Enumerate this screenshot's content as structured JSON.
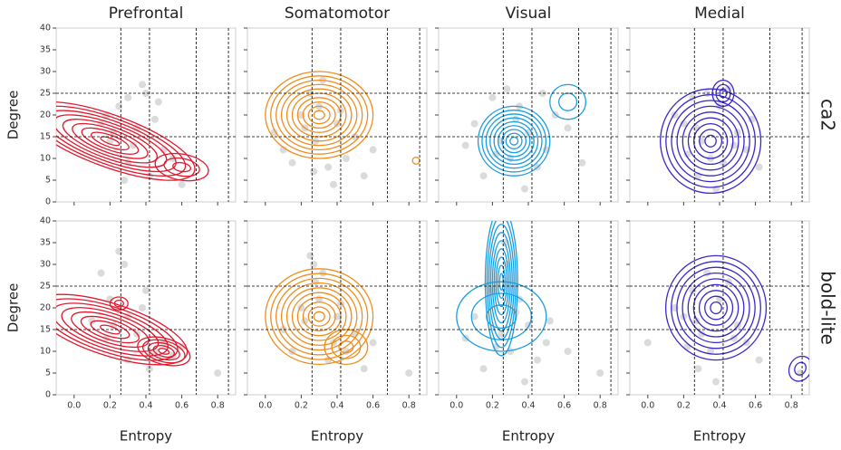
{
  "chart_data": {
    "type": "kde-grid",
    "column_titles": [
      "Prefrontal",
      "Somatomotor",
      "Visual",
      "Medial"
    ],
    "row_titles": [
      "ca2",
      "bold-lite"
    ],
    "x_label": "Entropy",
    "y_label": "Degree",
    "xlim": [
      -0.1,
      0.9
    ],
    "xticks": [
      {
        "value": 0,
        "label": "0.0"
      },
      0.2,
      0.4,
      0.6,
      0.8
    ],
    "ylim": [
      0,
      40
    ],
    "yticks": [
      0,
      5,
      10,
      15,
      20,
      25,
      30,
      35,
      40
    ],
    "vlines": [
      0.26,
      0.42,
      0.68,
      0.86
    ],
    "hlines": [
      15,
      25
    ],
    "panels": [
      {
        "type": "kde",
        "color": "#e3182d",
        "x": [
          0.15,
          0.2,
          0.25,
          0.3,
          0.35,
          0.4,
          0.45,
          0.5,
          0.3,
          0.22,
          0.38,
          0.42,
          0.28,
          0.18,
          0.55,
          0.33,
          0.47,
          0.6
        ],
        "y": [
          18,
          14,
          22,
          24,
          17,
          25,
          19,
          12,
          9,
          16,
          27,
          6,
          5,
          20,
          10,
          13,
          23,
          4
        ],
        "kde": [
          {
            "x": 0.2,
            "y": 14,
            "rx": 0.5,
            "ry": 6,
            "angle": 20,
            "levels": 9
          },
          {
            "x": 0.6,
            "y": 8,
            "rx": 0.15,
            "ry": 3,
            "angle": 10,
            "levels": 3
          }
        ]
      },
      {
        "type": "kde",
        "color": "#ef8e1f",
        "x": [
          0.1,
          0.2,
          0.25,
          0.3,
          0.35,
          0.4,
          0.5,
          0.55,
          0.15,
          0.28,
          0.45,
          0.32,
          0.22,
          0.38,
          0.6,
          0.05,
          0.42,
          0.27
        ],
        "y": [
          12,
          20,
          25,
          22,
          8,
          18,
          15,
          6,
          9,
          14,
          10,
          28,
          17,
          4,
          12,
          16,
          21,
          7
        ],
        "kde": [
          {
            "x": 0.3,
            "y": 20,
            "rx": 0.3,
            "ry": 10,
            "angle": 0,
            "levels": 10
          },
          {
            "x": 0.84,
            "y": 9.5,
            "rx": 0.02,
            "ry": 0.8,
            "angle": 0,
            "levels": 1
          }
        ]
      },
      {
        "type": "kde",
        "color": "#1b9ee0",
        "x": [
          0.1,
          0.2,
          0.25,
          0.3,
          0.35,
          0.4,
          0.5,
          0.55,
          0.15,
          0.28,
          0.45,
          0.62,
          0.22,
          0.38,
          0.05,
          0.48,
          0.33,
          0.7
        ],
        "y": [
          18,
          24,
          14,
          10,
          22,
          16,
          12,
          20,
          6,
          26,
          8,
          17,
          11,
          3,
          13,
          25,
          19,
          9
        ],
        "kde": [
          {
            "x": 0.32,
            "y": 14,
            "rx": 0.2,
            "ry": 8,
            "angle": 0,
            "levels": 9
          },
          {
            "x": 0.62,
            "y": 23,
            "rx": 0.1,
            "ry": 4,
            "angle": 0,
            "levels": 2
          }
        ]
      },
      {
        "type": "kde",
        "color": "#3b28c8",
        "x": [
          0.2,
          0.25,
          0.3,
          0.35,
          0.4,
          0.5,
          0.55,
          0.15,
          0.28,
          0.45,
          0.62,
          0.22,
          0.38,
          0.48,
          0.33,
          0.58,
          0.42,
          0.27
        ],
        "y": [
          18,
          24,
          14,
          10,
          22,
          16,
          12,
          20,
          6,
          26,
          8,
          11,
          3,
          13,
          25,
          19,
          9,
          17
        ],
        "kde": [
          {
            "x": 0.35,
            "y": 14,
            "rx": 0.28,
            "ry": 12,
            "angle": 0,
            "levels": 9
          },
          {
            "x": 0.42,
            "y": 25,
            "rx": 0.06,
            "ry": 3,
            "angle": 0,
            "levels": 3
          }
        ]
      },
      {
        "type": "kde",
        "color": "#e3182d",
        "x": [
          0.15,
          0.2,
          0.25,
          0.3,
          0.35,
          0.4,
          0.45,
          0.5,
          0.3,
          0.22,
          0.38,
          0.42,
          0.28,
          0.18,
          0.55,
          0.8,
          0.1,
          0.6
        ],
        "y": [
          28,
          22,
          33,
          18,
          14,
          24,
          10,
          12,
          8,
          16,
          20,
          6,
          30,
          13,
          9,
          5,
          17,
          11
        ],
        "kde": [
          {
            "x": 0.2,
            "y": 15,
            "rx": 0.45,
            "ry": 6,
            "angle": 18,
            "levels": 8
          },
          {
            "x": 0.5,
            "y": 10,
            "rx": 0.15,
            "ry": 3,
            "angle": 15,
            "levels": 5
          },
          {
            "x": 0.25,
            "y": 21,
            "rx": 0.05,
            "ry": 1.5,
            "angle": 0,
            "levels": 2
          }
        ]
      },
      {
        "type": "kde",
        "color": "#ef8e1f",
        "x": [
          0.1,
          0.2,
          0.25,
          0.3,
          0.35,
          0.4,
          0.5,
          0.55,
          0.15,
          0.28,
          0.45,
          0.32,
          0.22,
          0.38,
          0.6,
          0.8,
          0.42,
          0.27
        ],
        "y": [
          15,
          20,
          32,
          22,
          8,
          18,
          14,
          6,
          10,
          26,
          10,
          28,
          17,
          12,
          12,
          5,
          21,
          30
        ],
        "kde": [
          {
            "x": 0.3,
            "y": 18,
            "rx": 0.3,
            "ry": 11,
            "angle": 0,
            "levels": 10
          },
          {
            "x": 0.45,
            "y": 11,
            "rx": 0.12,
            "ry": 4,
            "angle": 0,
            "levels": 3
          }
        ]
      },
      {
        "type": "kde",
        "color": "#1b9ee0",
        "x": [
          0.1,
          0.2,
          0.25,
          0.3,
          0.35,
          0.4,
          0.5,
          0.05,
          0.15,
          0.28,
          0.45,
          0.62,
          0.22,
          0.38,
          0.52,
          0.8,
          0.33,
          0.27
        ],
        "y": [
          18,
          24,
          14,
          10,
          22,
          16,
          12,
          13,
          6,
          30,
          8,
          10,
          11,
          3,
          17,
          5,
          19,
          35
        ],
        "kde": [
          {
            "x": 0.25,
            "y": 26,
            "rx": 0.09,
            "ry": 17,
            "angle": 0,
            "levels": 9
          },
          {
            "x": 0.25,
            "y": 18,
            "rx": 0.25,
            "ry": 8,
            "angle": 0,
            "levels": 3
          }
        ]
      },
      {
        "type": "kde",
        "color": "#3b28c8",
        "x": [
          0.2,
          0.25,
          0.3,
          0.35,
          0.4,
          0.5,
          0.55,
          0.15,
          0.28,
          0.45,
          0.62,
          0.22,
          0.38,
          0.48,
          0.33,
          0.85,
          0.0,
          0.27
        ],
        "y": [
          18,
          24,
          14,
          10,
          22,
          16,
          12,
          20,
          6,
          26,
          8,
          11,
          3,
          13,
          28,
          5,
          12,
          17
        ],
        "kde": [
          {
            "x": 0.38,
            "y": 20,
            "rx": 0.28,
            "ry": 12,
            "angle": 0,
            "levels": 9
          },
          {
            "x": 0.85,
            "y": 6,
            "rx": 0.06,
            "ry": 3,
            "angle": 30,
            "levels": 2
          }
        ]
      }
    ]
  }
}
